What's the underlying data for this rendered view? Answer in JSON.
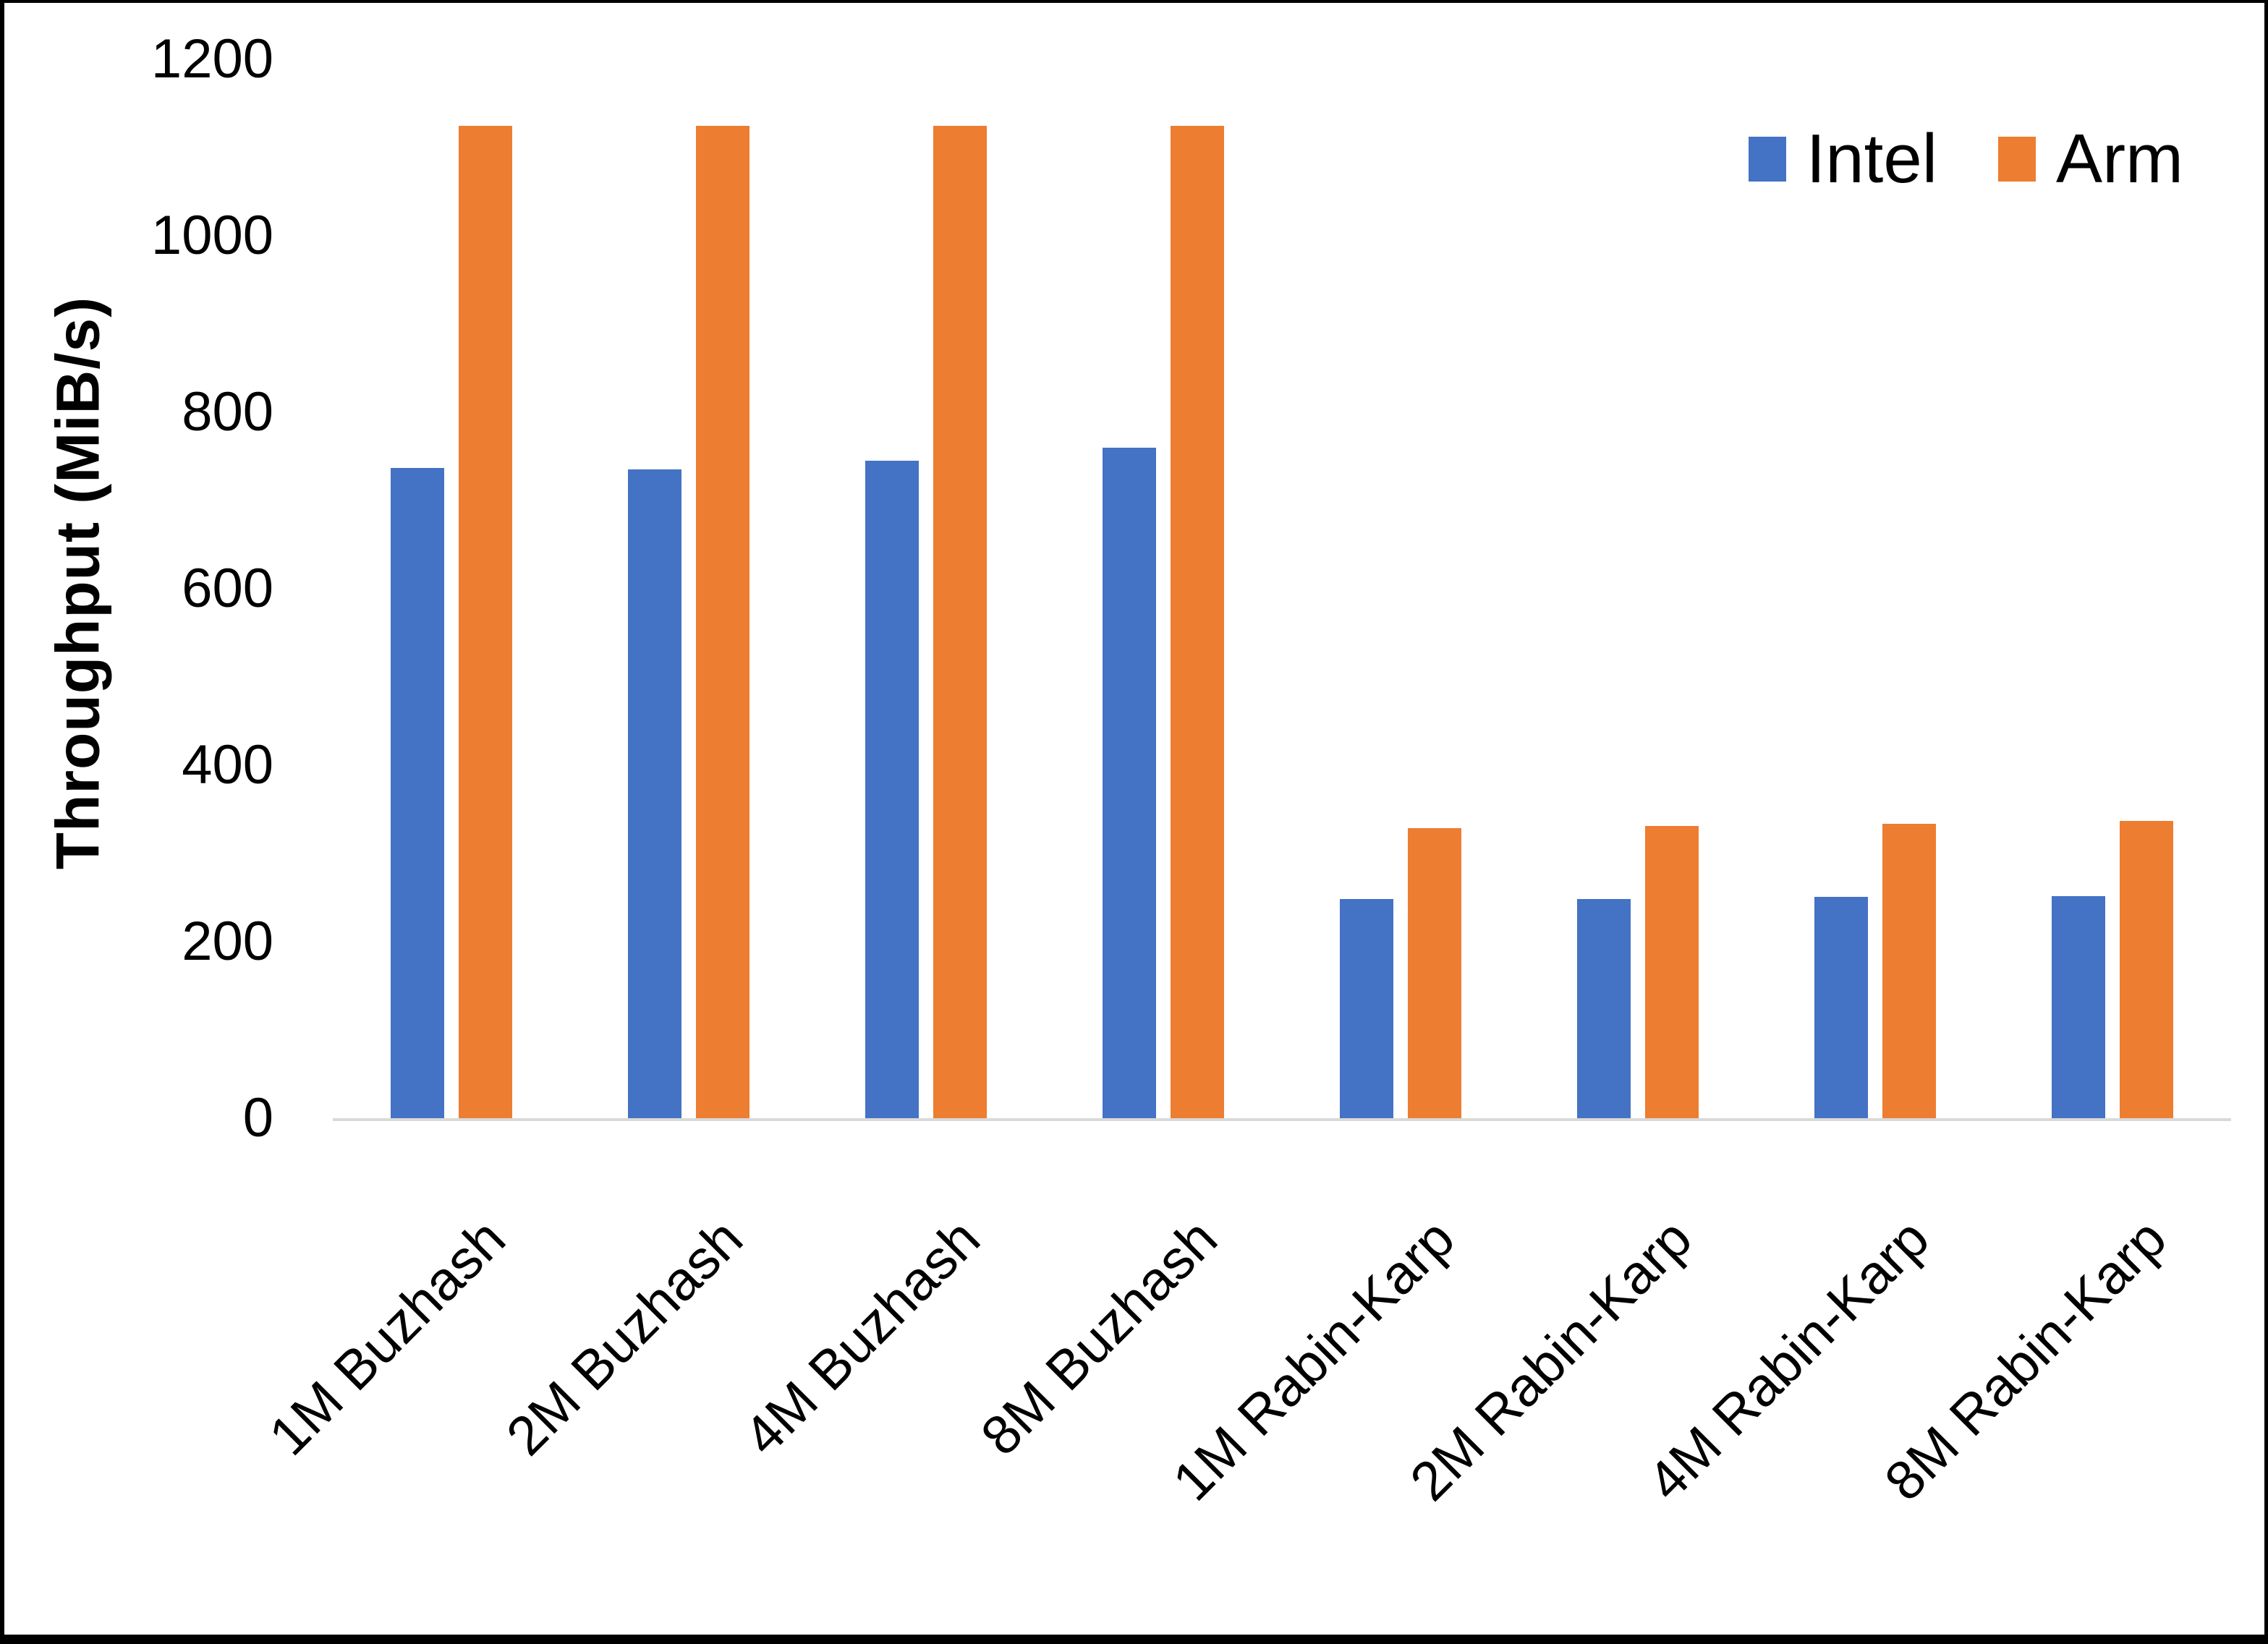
{
  "figure": {
    "background": "#FFFFFF",
    "border_color": "#000000"
  },
  "chart_data": {
    "type": "bar",
    "title": "",
    "categories": [
      "1M Buzhash",
      "2M Buzhash",
      "4M Buzhash",
      "8M Buzhash",
      "1M Rabin-Karp",
      "2M Rabin-Karp",
      "4M Rabin-Karp",
      "8M Rabin-Karp"
    ],
    "series": [
      {
        "name": "Intel",
        "color": "#4472C4",
        "values": [
          737,
          735,
          745,
          760,
          248,
          248,
          251,
          252
        ]
      },
      {
        "name": "Arm",
        "color": "#ED7D31",
        "values": [
          1125,
          1125,
          1125,
          1125,
          329,
          331,
          334,
          337
        ]
      }
    ],
    "xlabel": "",
    "ylabel": "Throughput (MiB/s)",
    "ylim": [
      0,
      1200
    ],
    "yticks": [
      0,
      200,
      400,
      600,
      800,
      1000,
      1200
    ],
    "grid": false,
    "legend_position": "top-right",
    "axis_line_color": "#D9D9D9",
    "text_color": "#000000"
  }
}
